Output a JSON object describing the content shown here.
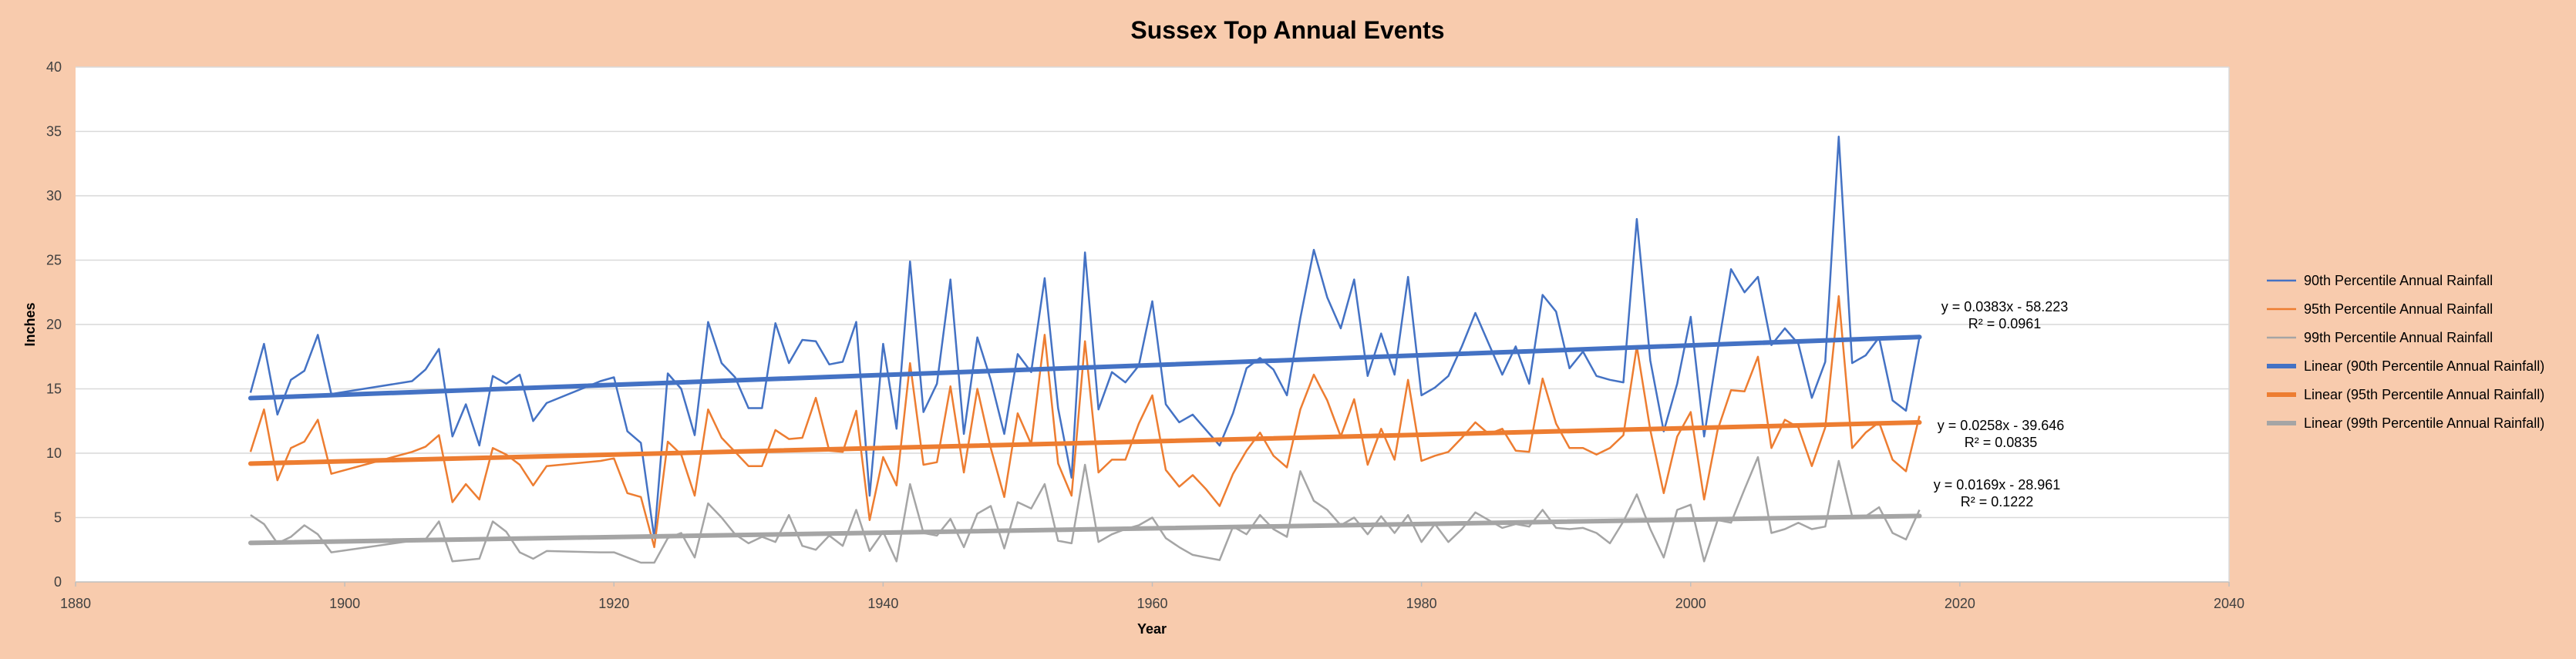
{
  "chart_data": {
    "type": "line",
    "title": "Sussex Top Annual Events",
    "xlabel": "Year",
    "ylabel": "Inches",
    "xlim": [
      1880,
      2040
    ],
    "ylim": [
      0,
      40
    ],
    "xticks": [
      1880,
      1900,
      1920,
      1940,
      1960,
      1980,
      2000,
      2020,
      2040
    ],
    "yticks": [
      0,
      5,
      10,
      15,
      20,
      25,
      30,
      35,
      40
    ],
    "grid": "horizontal",
    "legend_position": "right",
    "x": [
      1893,
      1894,
      1895,
      1896,
      1897,
      1898,
      1899,
      1905,
      1906,
      1907,
      1908,
      1909,
      1910,
      1911,
      1912,
      1913,
      1914,
      1915,
      1919,
      1920,
      1921,
      1922,
      1923,
      1924,
      1925,
      1926,
      1927,
      1928,
      1929,
      1930,
      1931,
      1932,
      1933,
      1934,
      1935,
      1936,
      1937,
      1938,
      1939,
      1940,
      1941,
      1942,
      1943,
      1944,
      1945,
      1946,
      1947,
      1948,
      1949,
      1950,
      1951,
      1952,
      1953,
      1954,
      1955,
      1956,
      1957,
      1958,
      1959,
      1960,
      1961,
      1962,
      1963,
      1964,
      1965,
      1966,
      1967,
      1968,
      1969,
      1970,
      1971,
      1972,
      1973,
      1974,
      1975,
      1976,
      1977,
      1978,
      1979,
      1980,
      1981,
      1982,
      1983,
      1984,
      1985,
      1986,
      1987,
      1988,
      1989,
      1990,
      1991,
      1992,
      1993,
      1994,
      1995,
      1996,
      1997,
      1998,
      1999,
      2000,
      2001,
      2002,
      2003,
      2004,
      2005,
      2006,
      2007,
      2008,
      2009,
      2010,
      2011,
      2012,
      2013,
      2014,
      2015,
      2016,
      2017
    ],
    "series": [
      {
        "name": "90th Percentile Annual Rainfall",
        "color": "#4472c4",
        "style": "line",
        "values": [
          14.7,
          18.5,
          13.0,
          15.7,
          16.4,
          19.2,
          14.6,
          15.6,
          16.5,
          18.1,
          11.3,
          13.8,
          10.6,
          16.0,
          15.4,
          16.1,
          12.5,
          13.9,
          15.6,
          15.9,
          11.7,
          10.8,
          3.4,
          16.2,
          15.0,
          11.4,
          20.2,
          17.0,
          15.9,
          13.5,
          13.5,
          20.1,
          17.0,
          18.8,
          18.7,
          16.9,
          17.1,
          20.2,
          6.7,
          18.5,
          11.9,
          24.9,
          13.2,
          15.4,
          23.5,
          11.5,
          19.0,
          15.7,
          11.5,
          17.7,
          16.3,
          23.6,
          13.5,
          8.1,
          25.6,
          13.4,
          16.3,
          15.5,
          16.8,
          21.8,
          13.8,
          12.4,
          13.0,
          11.8,
          10.6,
          13.1,
          16.6,
          17.4,
          16.5,
          14.5,
          20.5,
          25.8,
          22.1,
          19.7,
          23.5,
          16.0,
          19.3,
          16.1,
          23.7,
          14.5,
          15.1,
          16.0,
          18.3,
          20.9,
          18.5,
          16.1,
          18.3,
          15.4,
          22.3,
          21.0,
          16.6,
          17.9,
          16.0,
          15.7,
          15.5,
          28.2,
          17.2,
          11.7,
          15.4,
          20.6,
          11.3,
          18.0,
          24.3,
          22.5,
          23.7,
          18.4,
          19.7,
          18.5,
          14.3,
          17.1,
          34.6,
          17.0,
          17.6,
          19.0,
          14.1,
          13.3,
          19.0
        ]
      },
      {
        "name": "95th Percentile Annual Rainfall",
        "color": "#ed7d31",
        "style": "line",
        "values": [
          10.1,
          13.4,
          7.9,
          10.4,
          10.9,
          12.6,
          8.4,
          10.1,
          10.5,
          11.4,
          6.2,
          7.6,
          6.4,
          10.4,
          9.9,
          9.1,
          7.5,
          9.0,
          9.4,
          9.6,
          6.9,
          6.6,
          2.7,
          10.9,
          9.9,
          6.7,
          13.4,
          11.2,
          10.1,
          9.0,
          9.0,
          11.8,
          11.1,
          11.2,
          14.3,
          10.2,
          10.1,
          13.3,
          4.8,
          9.7,
          7.5,
          17.0,
          9.1,
          9.3,
          15.2,
          8.5,
          15.0,
          10.4,
          6.6,
          13.1,
          10.7,
          19.2,
          9.2,
          6.7,
          18.7,
          8.5,
          9.5,
          9.5,
          12.3,
          14.5,
          8.7,
          7.4,
          8.3,
          7.2,
          5.9,
          8.4,
          10.2,
          11.6,
          9.8,
          8.9,
          13.4,
          16.1,
          14.1,
          11.3,
          14.2,
          9.1,
          11.9,
          9.5,
          15.7,
          9.4,
          9.8,
          10.1,
          11.2,
          12.4,
          11.5,
          11.9,
          10.2,
          10.1,
          15.8,
          12.3,
          10.4,
          10.4,
          9.9,
          10.4,
          11.4,
          18.3,
          11.8,
          6.9,
          11.3,
          13.2,
          6.4,
          11.8,
          14.9,
          14.8,
          17.5,
          10.4,
          12.6,
          12.0,
          9.0,
          12.0,
          22.2,
          10.4,
          11.6,
          12.4,
          9.5,
          8.6,
          12.9
        ]
      },
      {
        "name": "99th Percentile Annual Rainfall",
        "color": "#a5a5a5",
        "style": "line",
        "values": [
          5.2,
          4.5,
          3.0,
          3.5,
          4.4,
          3.7,
          2.3,
          3.2,
          3.3,
          4.7,
          1.6,
          1.7,
          1.8,
          4.7,
          3.9,
          2.3,
          1.8,
          2.4,
          2.3,
          2.3,
          1.9,
          1.5,
          1.5,
          3.4,
          3.8,
          1.9,
          6.1,
          5.0,
          3.7,
          3.0,
          3.5,
          3.1,
          5.2,
          2.8,
          2.5,
          3.6,
          2.8,
          5.6,
          2.4,
          3.9,
          1.6,
          7.6,
          3.8,
          3.6,
          4.9,
          2.7,
          5.3,
          5.9,
          2.6,
          6.2,
          5.7,
          7.6,
          3.2,
          3.0,
          9.1,
          3.1,
          3.7,
          4.1,
          4.4,
          5.0,
          3.4,
          2.7,
          2.1,
          1.9,
          1.7,
          4.3,
          3.7,
          5.2,
          4.1,
          3.5,
          8.6,
          6.3,
          5.6,
          4.4,
          5.0,
          3.7,
          5.1,
          3.8,
          5.2,
          3.1,
          4.5,
          3.1,
          4.1,
          5.4,
          4.8,
          4.2,
          4.5,
          4.3,
          5.6,
          4.2,
          4.1,
          4.2,
          3.8,
          3.0,
          4.7,
          6.8,
          4.1,
          1.9,
          5.6,
          6.0,
          1.6,
          4.8,
          4.6,
          7.2,
          9.7,
          3.8,
          4.1,
          4.6,
          4.1,
          4.3,
          9.4,
          5.1,
          5.1,
          5.8,
          3.8,
          3.3,
          5.6
        ]
      },
      {
        "name": "Linear (90th Percentile Annual Rainfall)",
        "color": "#4472c4",
        "style": "trend",
        "slope": 0.0383,
        "intercept": -58.223,
        "equation": "y = 0.0383x - 58.223",
        "r2": "R² = 0.0961"
      },
      {
        "name": "Linear (95th Percentile Annual Rainfall)",
        "color": "#ed7d31",
        "style": "trend",
        "slope": 0.0258,
        "intercept": -39.646,
        "equation": "y = 0.0258x - 39.646",
        "r2": "R² = 0.0835"
      },
      {
        "name": "Linear (99th Percentile Annual Rainfall)",
        "color": "#a5a5a5",
        "style": "trend",
        "slope": 0.0169,
        "intercept": -28.961,
        "equation": "y = 0.0169x - 28.961",
        "r2": "R² = 0.1222"
      }
    ]
  }
}
